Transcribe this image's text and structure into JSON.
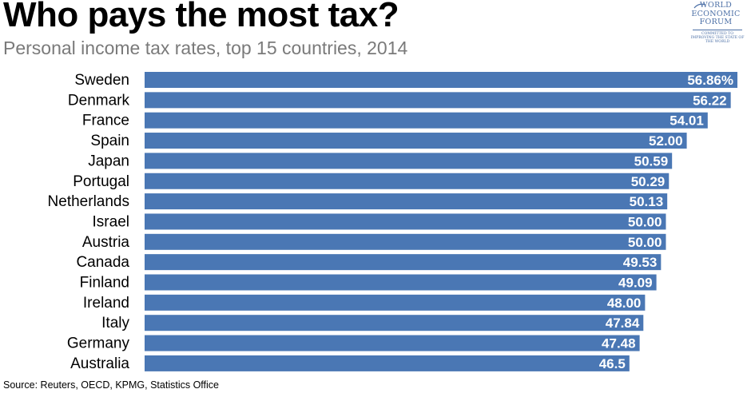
{
  "header": {
    "title": "Who pays the most tax?",
    "subtitle": "Personal income tax rates, top 15 countries, 2014"
  },
  "logo": {
    "line1": "WORLD",
    "line2": "ECONOMIC",
    "line3": "FORUM",
    "tagline": "COMMITTED TO IMPROVING THE STATE OF THE WORLD"
  },
  "source": "Source: Reuters, OECD, KPMG, Statistics Office",
  "colors": {
    "bar": "#4a77b4",
    "label": "#ffffff",
    "text": "#000000"
  },
  "chart_data": {
    "type": "bar",
    "orientation": "horizontal",
    "title": "Who pays the most tax?",
    "subtitle": "Personal income tax rates, top 15 countries, 2014",
    "xlabel": "",
    "ylabel": "",
    "xlim": [
      0,
      56.86
    ],
    "grid": false,
    "categories": [
      "Sweden",
      "Denmark",
      "France",
      "Spain",
      "Japan",
      "Portugal",
      "Netherlands",
      "Israel",
      "Austria",
      "Canada",
      "Finland",
      "Ireland",
      "Italy",
      "Germany",
      "Australia"
    ],
    "values": [
      56.86,
      56.22,
      54.01,
      52.0,
      50.59,
      50.29,
      50.13,
      50.0,
      50.0,
      49.53,
      49.09,
      48.0,
      47.84,
      47.48,
      46.5
    ],
    "data_labels": [
      "56.86%",
      "56.22",
      "54.01",
      "52.00",
      "50.59",
      "50.29",
      "50.13",
      "50.00",
      "50.00",
      "49.53",
      "49.09",
      "48.00",
      "47.84",
      "47.48",
      "46.5"
    ]
  }
}
